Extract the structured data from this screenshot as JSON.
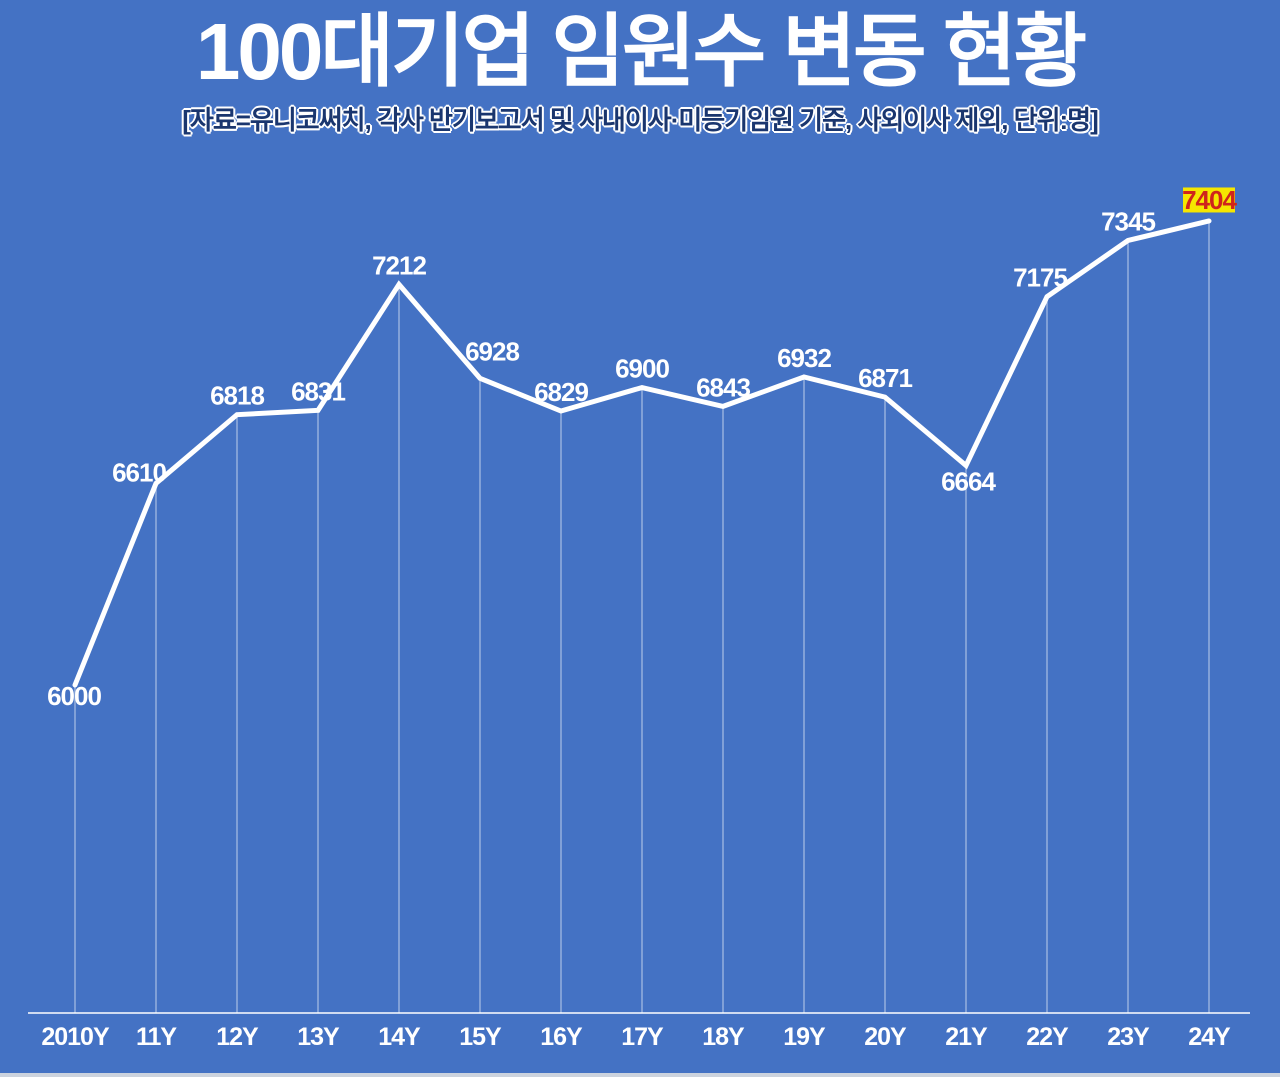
{
  "chart_data": {
    "type": "line",
    "title": "100대기업 임원수 변동 현황",
    "subtitle": "[자료=유니코써치, 각사 반기보고서 및 사내이사·미등기임원 기준, 사외이사 제외, 단위:명]",
    "unit": "명",
    "categories": [
      "2010Y",
      "11Y",
      "12Y",
      "13Y",
      "14Y",
      "15Y",
      "16Y",
      "17Y",
      "18Y",
      "19Y",
      "20Y",
      "21Y",
      "22Y",
      "23Y",
      "24Y"
    ],
    "values": [
      6000,
      6610,
      6818,
      6831,
      7212,
      6928,
      6829,
      6900,
      6843,
      6932,
      6871,
      6664,
      7175,
      7345,
      7404
    ],
    "ylim": [
      5900,
      7520
    ],
    "grid": "vertical drop line from each point down to x-axis",
    "legend": "none",
    "highlight": {
      "index": 14,
      "value": 7404,
      "badge_bg": "#f5e600",
      "badge_text": "#cf241c"
    },
    "colors": {
      "background": "#4472c4",
      "line": "#ffffff",
      "value_label": "#ffffff",
      "tick_label": "#ffffff",
      "axis_line": "#ffffff",
      "drop_line": "#ffffff",
      "subtitle_text": "#1a366f",
      "subtitle_outline": "#ffffff",
      "bottom_strip": "#ccd3de"
    },
    "label_offsets": {
      "0": [
        -1,
        11
      ],
      "1": [
        -17,
        -11
      ],
      "5": [
        12,
        -27
      ],
      "11": [
        2,
        16
      ],
      "12": [
        -7,
        -19
      ],
      "14": [
        0,
        -21
      ]
    }
  }
}
